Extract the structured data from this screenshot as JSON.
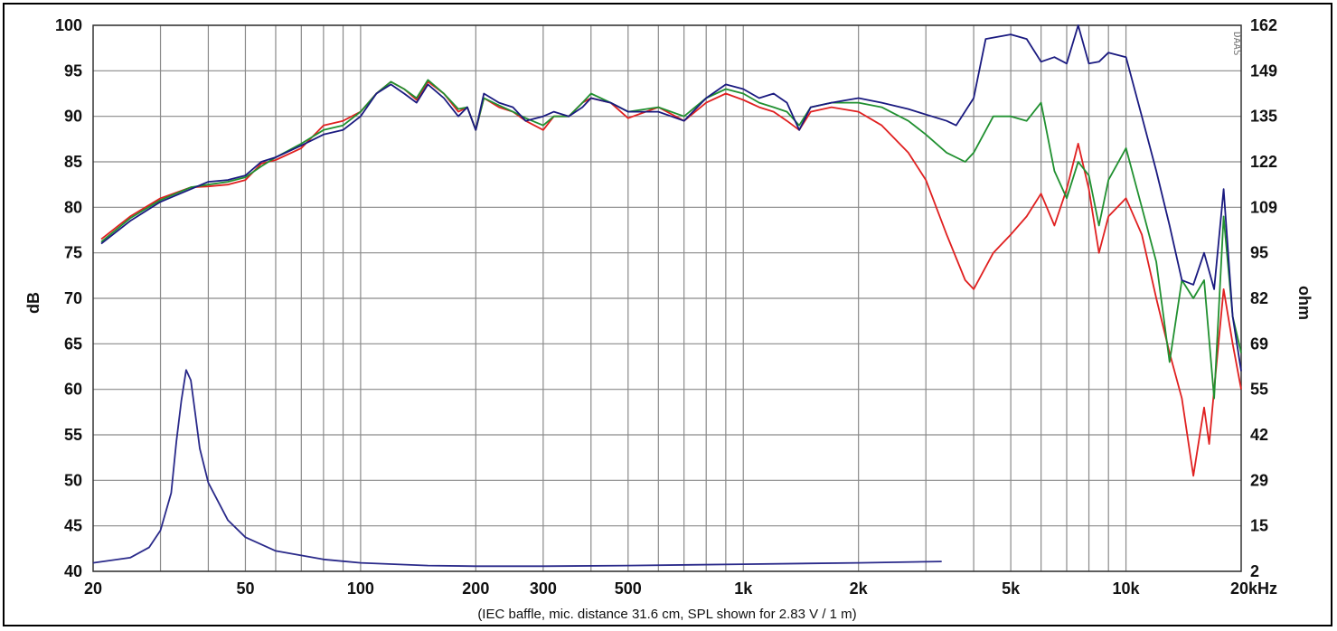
{
  "chart_data": {
    "type": "line",
    "caption": "(IEC baffle, mic. distance 31.6 cm, SPL shown for 2.83 V / 1 m)",
    "ylabel": "dB",
    "y2label": "ohm",
    "watermark": "DAAS",
    "x_scale": "log",
    "xlim": [
      20,
      20000
    ],
    "ylim": [
      40,
      100
    ],
    "y2lim": [
      2,
      162
    ],
    "grid": true,
    "x_ticks": [
      {
        "value": 20,
        "label": "20"
      },
      {
        "value": 50,
        "label": "50"
      },
      {
        "value": 100,
        "label": "100"
      },
      {
        "value": 200,
        "label": "200"
      },
      {
        "value": 300,
        "label": "300"
      },
      {
        "value": 500,
        "label": "500"
      },
      {
        "value": 1000,
        "label": "1k"
      },
      {
        "value": 2000,
        "label": "2k"
      },
      {
        "value": 5000,
        "label": "5k"
      },
      {
        "value": 10000,
        "label": "10k"
      },
      {
        "value": 20000,
        "label": "20kHz"
      }
    ],
    "y_ticks": [
      40,
      45,
      50,
      55,
      60,
      65,
      70,
      75,
      80,
      85,
      90,
      95,
      100
    ],
    "y2_ticks": [
      "2",
      "15",
      "29",
      "42",
      "55",
      "69",
      "82",
      "95",
      "109",
      "122",
      "135",
      "149",
      "162"
    ],
    "series": [
      {
        "color": "#e02020",
        "points": [
          [
            21,
            76.5
          ],
          [
            25,
            79
          ],
          [
            30,
            81
          ],
          [
            36,
            82.2
          ],
          [
            40,
            82.3
          ],
          [
            45,
            82.5
          ],
          [
            50,
            83
          ],
          [
            55,
            84.8
          ],
          [
            60,
            85.2
          ],
          [
            70,
            86.5
          ],
          [
            80,
            89
          ],
          [
            90,
            89.5
          ],
          [
            100,
            90.5
          ],
          [
            110,
            92.5
          ],
          [
            120,
            93.8
          ],
          [
            130,
            93
          ],
          [
            140,
            91.8
          ],
          [
            150,
            93.8
          ],
          [
            165,
            92.5
          ],
          [
            180,
            90.5
          ],
          [
            190,
            91
          ],
          [
            200,
            88.5
          ],
          [
            210,
            92
          ],
          [
            230,
            91
          ],
          [
            250,
            90.5
          ],
          [
            270,
            89.5
          ],
          [
            300,
            88.5
          ],
          [
            320,
            90
          ],
          [
            350,
            90
          ],
          [
            380,
            91.5
          ],
          [
            400,
            92
          ],
          [
            450,
            91.5
          ],
          [
            500,
            89.8
          ],
          [
            600,
            91
          ],
          [
            700,
            89.5
          ],
          [
            800,
            91.5
          ],
          [
            900,
            92.5
          ],
          [
            1000,
            91.8
          ],
          [
            1100,
            91
          ],
          [
            1200,
            90.5
          ],
          [
            1300,
            89.5
          ],
          [
            1400,
            88.5
          ],
          [
            1500,
            90.5
          ],
          [
            1700,
            91
          ],
          [
            2000,
            90.5
          ],
          [
            2300,
            89
          ],
          [
            2700,
            86
          ],
          [
            3000,
            83
          ],
          [
            3400,
            77
          ],
          [
            3800,
            72
          ],
          [
            4000,
            71
          ],
          [
            4500,
            75
          ],
          [
            5000,
            77
          ],
          [
            5500,
            79
          ],
          [
            6000,
            81.5
          ],
          [
            6500,
            78
          ],
          [
            7000,
            82
          ],
          [
            7500,
            87
          ],
          [
            8000,
            82
          ],
          [
            8500,
            75
          ],
          [
            9000,
            79
          ],
          [
            10000,
            81
          ],
          [
            11000,
            77
          ],
          [
            12000,
            70
          ],
          [
            13000,
            64
          ],
          [
            14000,
            59
          ],
          [
            15000,
            50.5
          ],
          [
            16000,
            58
          ],
          [
            16500,
            54
          ],
          [
            17000,
            60
          ],
          [
            18000,
            71
          ],
          [
            19000,
            65
          ],
          [
            20000,
            60
          ]
        ]
      },
      {
        "color": "#209030",
        "points": [
          [
            21,
            76.2
          ],
          [
            25,
            78.8
          ],
          [
            30,
            80.8
          ],
          [
            36,
            82.2
          ],
          [
            40,
            82.5
          ],
          [
            45,
            82.8
          ],
          [
            50,
            83.3
          ],
          [
            55,
            84.5
          ],
          [
            60,
            85.5
          ],
          [
            70,
            87
          ],
          [
            80,
            88.5
          ],
          [
            90,
            89
          ],
          [
            100,
            90.5
          ],
          [
            110,
            92.5
          ],
          [
            120,
            93.8
          ],
          [
            130,
            93
          ],
          [
            140,
            92
          ],
          [
            150,
            94
          ],
          [
            165,
            92.5
          ],
          [
            180,
            90.8
          ],
          [
            190,
            91
          ],
          [
            200,
            88.5
          ],
          [
            210,
            92
          ],
          [
            230,
            91.2
          ],
          [
            250,
            90.5
          ],
          [
            270,
            89.8
          ],
          [
            300,
            89
          ],
          [
            320,
            90
          ],
          [
            350,
            90
          ],
          [
            380,
            91.5
          ],
          [
            400,
            92.5
          ],
          [
            450,
            91.5
          ],
          [
            500,
            90.5
          ],
          [
            600,
            91
          ],
          [
            700,
            90
          ],
          [
            800,
            92
          ],
          [
            900,
            93
          ],
          [
            1000,
            92.5
          ],
          [
            1100,
            91.5
          ],
          [
            1200,
            91
          ],
          [
            1300,
            90.5
          ],
          [
            1400,
            89
          ],
          [
            1500,
            91
          ],
          [
            1700,
            91.5
          ],
          [
            2000,
            91.5
          ],
          [
            2300,
            91
          ],
          [
            2700,
            89.5
          ],
          [
            3000,
            88
          ],
          [
            3400,
            86
          ],
          [
            3800,
            85
          ],
          [
            4000,
            86
          ],
          [
            4500,
            90
          ],
          [
            5000,
            90
          ],
          [
            5500,
            89.5
          ],
          [
            6000,
            91.5
          ],
          [
            6500,
            84
          ],
          [
            7000,
            81
          ],
          [
            7500,
            85
          ],
          [
            8000,
            83.5
          ],
          [
            8500,
            78
          ],
          [
            9000,
            83
          ],
          [
            10000,
            86.5
          ],
          [
            11000,
            80
          ],
          [
            12000,
            74
          ],
          [
            13000,
            63
          ],
          [
            14000,
            72
          ],
          [
            15000,
            70
          ],
          [
            16000,
            72
          ],
          [
            17000,
            59
          ],
          [
            18000,
            79
          ],
          [
            19000,
            68
          ],
          [
            20000,
            64
          ]
        ]
      },
      {
        "color": "#1a1a80",
        "points": [
          [
            21,
            76
          ],
          [
            25,
            78.5
          ],
          [
            30,
            80.6
          ],
          [
            36,
            82
          ],
          [
            40,
            82.8
          ],
          [
            45,
            83
          ],
          [
            50,
            83.5
          ],
          [
            55,
            85
          ],
          [
            60,
            85.5
          ],
          [
            70,
            86.8
          ],
          [
            80,
            88
          ],
          [
            90,
            88.5
          ],
          [
            100,
            90
          ],
          [
            110,
            92.5
          ],
          [
            120,
            93.5
          ],
          [
            130,
            92.5
          ],
          [
            140,
            91.5
          ],
          [
            150,
            93.5
          ],
          [
            165,
            92
          ],
          [
            180,
            90
          ],
          [
            190,
            91
          ],
          [
            200,
            88.5
          ],
          [
            210,
            92.5
          ],
          [
            230,
            91.5
          ],
          [
            250,
            91
          ],
          [
            270,
            89.5
          ],
          [
            300,
            90
          ],
          [
            320,
            90.5
          ],
          [
            350,
            90
          ],
          [
            380,
            91
          ],
          [
            400,
            92
          ],
          [
            450,
            91.5
          ],
          [
            500,
            90.5
          ],
          [
            600,
            90.5
          ],
          [
            700,
            89.5
          ],
          [
            800,
            92
          ],
          [
            900,
            93.5
          ],
          [
            1000,
            93
          ],
          [
            1100,
            92
          ],
          [
            1200,
            92.5
          ],
          [
            1300,
            91.5
          ],
          [
            1400,
            88.5
          ],
          [
            1500,
            91
          ],
          [
            1700,
            91.5
          ],
          [
            2000,
            92
          ],
          [
            2300,
            91.5
          ],
          [
            2700,
            90.8
          ],
          [
            3000,
            90.2
          ],
          [
            3400,
            89.5
          ],
          [
            3600,
            89
          ],
          [
            4000,
            92
          ],
          [
            4300,
            98.5
          ],
          [
            5000,
            99
          ],
          [
            5500,
            98.5
          ],
          [
            6000,
            96
          ],
          [
            6500,
            96.5
          ],
          [
            7000,
            95.8
          ],
          [
            7500,
            100
          ],
          [
            8000,
            95.8
          ],
          [
            8500,
            96
          ],
          [
            9000,
            97
          ],
          [
            10000,
            96.5
          ],
          [
            11000,
            90
          ],
          [
            12000,
            84
          ],
          [
            13000,
            78
          ],
          [
            14000,
            72
          ],
          [
            15000,
            71.5
          ],
          [
            16000,
            75
          ],
          [
            17000,
            71
          ],
          [
            18000,
            82
          ],
          [
            19000,
            68
          ],
          [
            20000,
            62
          ]
        ]
      },
      {
        "color": "#2a2a8a",
        "axis": "y2",
        "points": [
          [
            20,
            4.5
          ],
          [
            25,
            6
          ],
          [
            28,
            9
          ],
          [
            30,
            14
          ],
          [
            32,
            25
          ],
          [
            33,
            40
          ],
          [
            34,
            52
          ],
          [
            35,
            61
          ],
          [
            36,
            58
          ],
          [
            37,
            48
          ],
          [
            38,
            38
          ],
          [
            40,
            28
          ],
          [
            45,
            17
          ],
          [
            50,
            12
          ],
          [
            60,
            8
          ],
          [
            80,
            5.5
          ],
          [
            100,
            4.5
          ],
          [
            150,
            3.7
          ],
          [
            200,
            3.5
          ],
          [
            300,
            3.5
          ],
          [
            500,
            3.7
          ],
          [
            1000,
            4.1
          ],
          [
            2000,
            4.5
          ],
          [
            3000,
            4.8
          ],
          [
            3300,
            4.9
          ]
        ]
      }
    ]
  }
}
